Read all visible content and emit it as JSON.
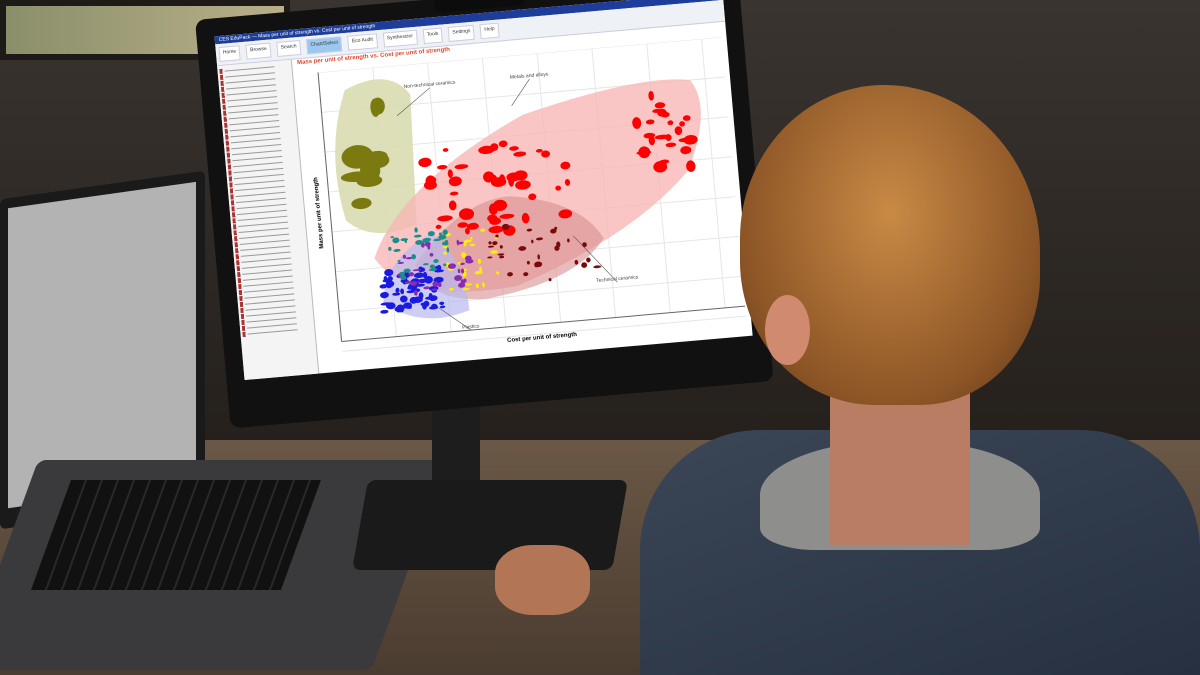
{
  "app": {
    "window_title": "CES EduPack — Mass per unit of strength vs. Cost per unit of strength",
    "toolbar": [
      "Home",
      "Browse",
      "Search",
      "Chart/Select",
      "Eco Audit",
      "Synthesizer",
      "Tools",
      "Settings",
      "Help"
    ],
    "active_toolbar": "Chart/Select"
  },
  "chart_data": {
    "type": "scatter",
    "title": "Mass per unit of strength vs. Cost per unit of strength",
    "xlabel": "Cost per unit of strength",
    "ylabel": "Mass per unit of strength",
    "xscale": "log",
    "yscale": "log",
    "grid": true,
    "legend": "none",
    "annotations": [
      "Non-technical ceramics",
      "Metals and alloys",
      "Technical ceramics",
      "Plastics"
    ],
    "groups": [
      {
        "name": "Non-technical ceramics",
        "color": "#7b7a10",
        "envelope": "#d9dcb0"
      },
      {
        "name": "Metals and alloys",
        "color": "#ff0000",
        "envelope": "#f7b6b6"
      },
      {
        "name": "Technical ceramics",
        "color": "#7a0a0a",
        "envelope": "#d99090"
      },
      {
        "name": "Plastics",
        "color": "#1a1ae0",
        "envelope": "#b9b9f0"
      }
    ],
    "other_colors": [
      "#ffee00",
      "#8a2bb0",
      "#1a8f8a"
    ]
  }
}
